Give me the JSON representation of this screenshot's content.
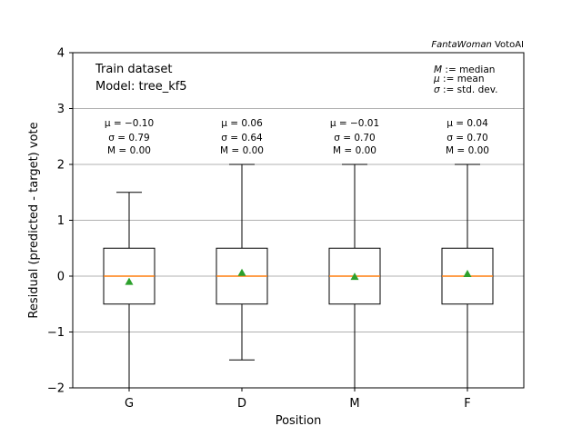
{
  "credit": {
    "brand": "FantaWoman",
    "suffix": " VotoAI"
  },
  "chart_data": {
    "type": "box",
    "title": "",
    "xlabel": "Position",
    "ylabel": "Residual (predicted - target) vote",
    "ylim": [
      -2,
      4
    ],
    "yticks": [
      -2,
      -1,
      0,
      1,
      2,
      3,
      4
    ],
    "ytick_labels": [
      "−2",
      "−1",
      "0",
      "1",
      "2",
      "3",
      "4"
    ],
    "grid": "horizontal",
    "categories": [
      "G",
      "D",
      "M",
      "F"
    ],
    "info_lines": [
      "Train dataset",
      "Model: tree_kf5"
    ],
    "legend_lines": [
      {
        "symbol": "M",
        "text": " := median"
      },
      {
        "symbol": "μ",
        "text": " := mean"
      },
      {
        "symbol": "σ",
        "text": " := std. dev."
      }
    ],
    "colors": {
      "box": "#000000",
      "median": "#ff7f0e",
      "mean": "#2ca02c",
      "grid": "#b0b0b0"
    },
    "boxes": [
      {
        "category": "G",
        "whisker_low": -2,
        "q1": -0.5,
        "median": 0,
        "q3": 0.5,
        "whisker_high": 1.5,
        "mean": -0.1,
        "labels": [
          "μ = −0.10",
          "σ = 0.79",
          "M = 0.00"
        ]
      },
      {
        "category": "D",
        "whisker_low": -1.5,
        "q1": -0.5,
        "median": 0,
        "q3": 0.5,
        "whisker_high": 2,
        "mean": 0.06,
        "labels": [
          "μ = 0.06",
          "σ = 0.64",
          "M = 0.00"
        ]
      },
      {
        "category": "M",
        "whisker_low": -2,
        "q1": -0.5,
        "median": 0,
        "q3": 0.5,
        "whisker_high": 2,
        "mean": -0.01,
        "labels": [
          "μ = −0.01",
          "σ = 0.70",
          "M = 0.00"
        ]
      },
      {
        "category": "F",
        "whisker_low": -2,
        "q1": -0.5,
        "median": 0,
        "q3": 0.5,
        "whisker_high": 2,
        "mean": 0.04,
        "labels": [
          "μ = 0.04",
          "σ = 0.70",
          "M = 0.00"
        ]
      }
    ]
  }
}
